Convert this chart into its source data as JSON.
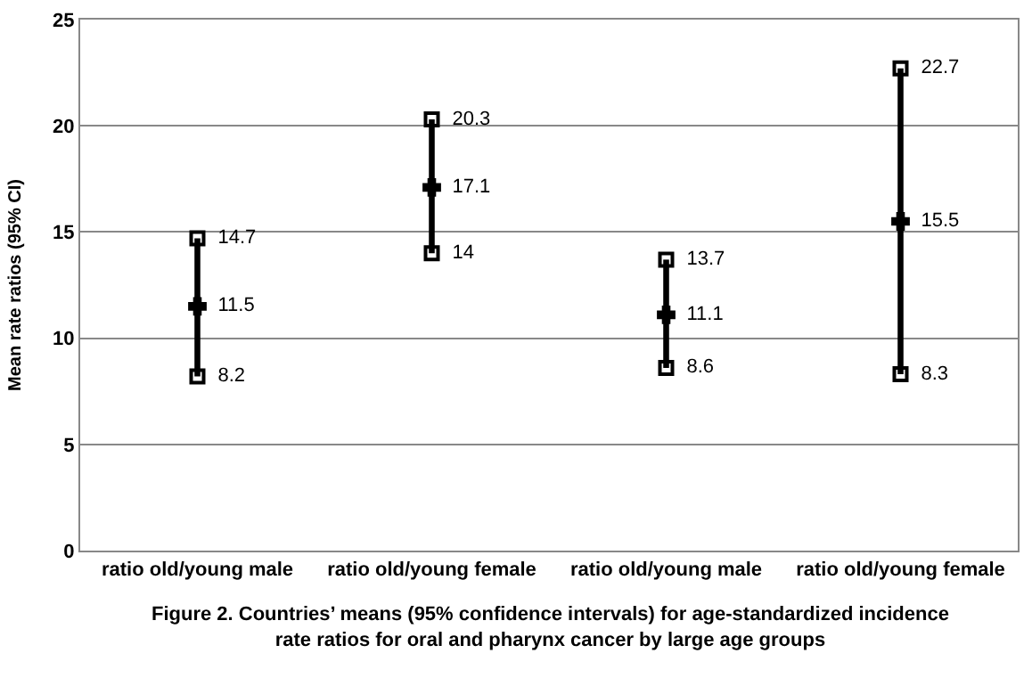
{
  "chart_data": {
    "type": "scatter",
    "title": "Figure 2. Countries’ means (95% confidence intervals) for age-standardized incidence rate ratios for oral and pharynx cancer by large age groups",
    "ylabel": "Mean rate ratios (95% CI)",
    "categories": [
      "ratio old/young male",
      "ratio old/young female",
      "ratio old/young male",
      "ratio old/young female"
    ],
    "series": [
      {
        "type": "bar",
        "color": "#000000",
        "base": [
          8.2,
          14,
          8.6,
          8.3
        ],
        "values": [
          6.5,
          6.3,
          5.1,
          14.4
        ]
      },
      {
        "color": "#000000",
        "marker": "cross",
        "values": [
          11.5,
          17.1,
          11.1,
          15.5
        ],
        "value_labels": [
          "11.5",
          "17.1",
          "11.1",
          "15.5"
        ]
      },
      {
        "color": "#000000",
        "marker": "square",
        "values": [
          14.7,
          20.3,
          13.7,
          22.7
        ],
        "value_labels": [
          "14.7",
          "20.3",
          "13.7",
          "22.7"
        ]
      },
      {
        "color": "#000000",
        "marker": "square",
        "values": [
          8.2,
          14,
          8.6,
          8.3
        ],
        "value_labels": [
          "8.2",
          "14",
          "8.6",
          "8.3"
        ]
      }
    ],
    "ylim": [
      0,
      25
    ],
    "yticks": [
      0,
      5,
      10,
      15,
      20,
      25
    ],
    "grid": "y"
  }
}
